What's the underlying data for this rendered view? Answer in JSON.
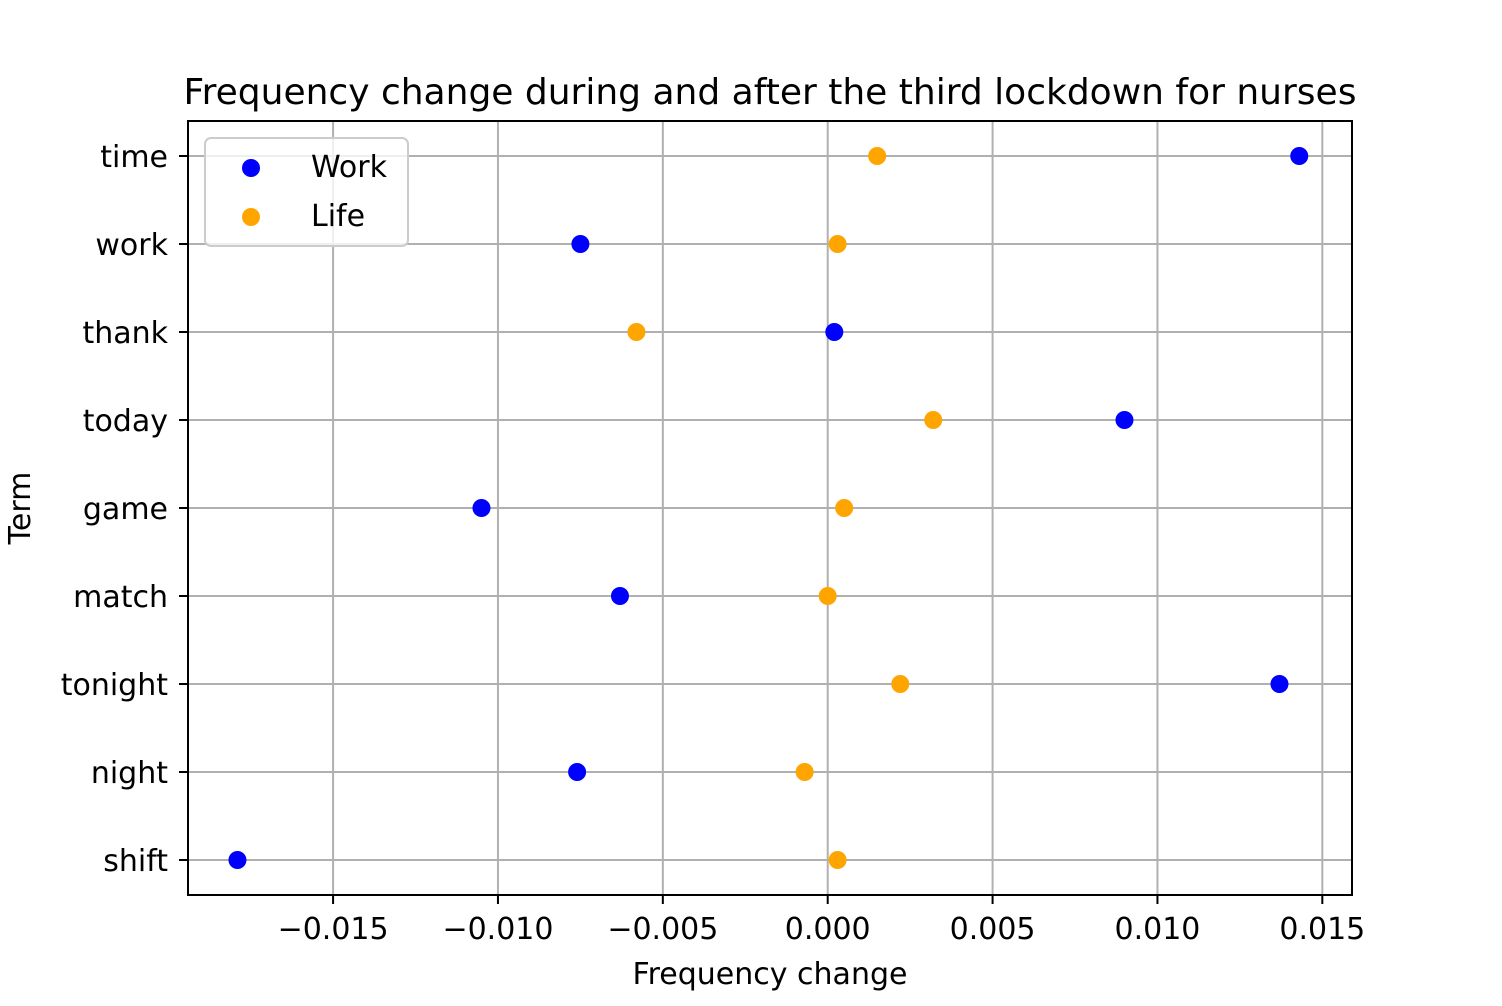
{
  "chart_data": {
    "type": "scatter",
    "title": "Frequency change during and after the third lockdown for nurses",
    "xlabel": "Frequency change",
    "ylabel": "Term",
    "categories": [
      "time",
      "work",
      "thank",
      "today",
      "game",
      "match",
      "tonight",
      "night",
      "shift"
    ],
    "xlim": [
      -0.0194,
      0.0159
    ],
    "xticks": [
      -0.015,
      -0.01,
      -0.005,
      0.0,
      0.005,
      0.01,
      0.015
    ],
    "xtick_labels": [
      "−0.015",
      "−0.010",
      "−0.005",
      "0.000",
      "0.005",
      "0.010",
      "0.015"
    ],
    "grid": true,
    "legend_position": "top-left",
    "series": [
      {
        "name": "Work",
        "color": "#0000ff",
        "values": [
          0.0143,
          -0.0075,
          0.0002,
          0.009,
          -0.0105,
          -0.0063,
          0.0137,
          -0.0076,
          -0.0179
        ]
      },
      {
        "name": "Life",
        "color": "#ffa500",
        "values": [
          0.0015,
          0.0003,
          -0.0058,
          0.0032,
          0.0005,
          0.0,
          0.0022,
          -0.0007,
          0.0003
        ]
      }
    ]
  }
}
